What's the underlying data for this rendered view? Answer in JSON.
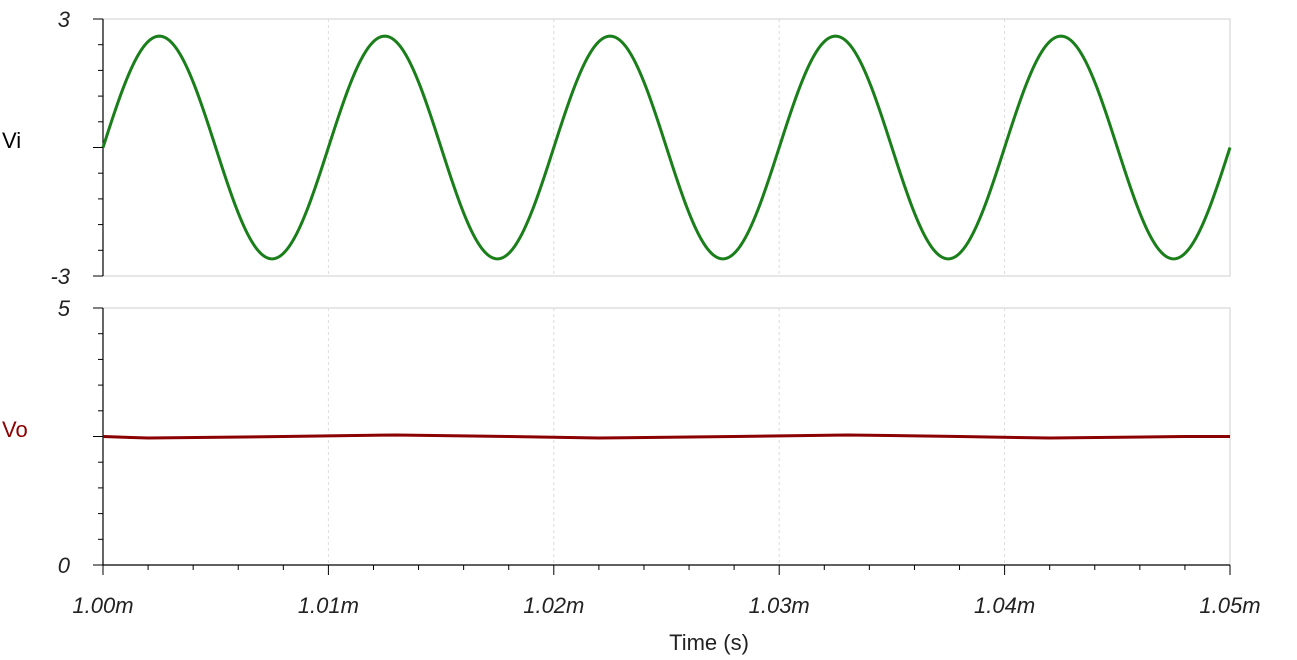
{
  "chart_data": [
    {
      "type": "line",
      "series": [
        {
          "name": "Vi",
          "color": "#1a7f1a",
          "amplitude": 2.6,
          "offset": 0,
          "frequency_hz": 100000,
          "phase_deg": 0
        }
      ],
      "x_range": [
        0.001,
        0.00105
      ],
      "ylim": [
        -3,
        3
      ],
      "y_tick_labels": [
        "3",
        "-3"
      ],
      "grid": true
    },
    {
      "type": "line",
      "series": [
        {
          "name": "Vo",
          "color": "#8b0000",
          "x": [
            0.001,
            0.001002,
            0.001008,
            0.001013,
            0.001018,
            0.001022,
            0.001028,
            0.001033,
            0.001038,
            0.001042,
            0.001048,
            0.00105
          ],
          "y": [
            2.5,
            2.47,
            2.5,
            2.53,
            2.5,
            2.47,
            2.5,
            2.53,
            2.5,
            2.47,
            2.5,
            2.5
          ]
        }
      ],
      "x_range": [
        0.001,
        0.00105
      ],
      "ylim": [
        0,
        5
      ],
      "y_tick_labels": [
        "5",
        "0"
      ],
      "grid": true
    }
  ],
  "x_axis": {
    "label": "Time (s)",
    "ticks": [
      0.001,
      0.00101,
      0.00102,
      0.00103,
      0.00104,
      0.00105
    ],
    "tick_labels": [
      "1.00m",
      "1.01m",
      "1.02m",
      "1.03m",
      "1.04m",
      "1.05m"
    ]
  }
}
